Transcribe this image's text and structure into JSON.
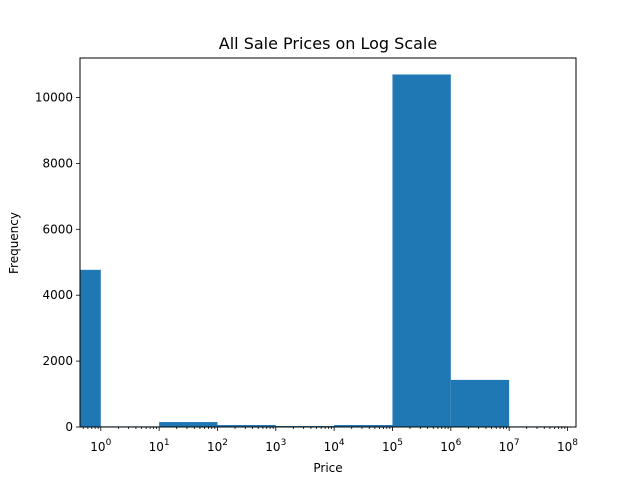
{
  "chart_data": {
    "type": "bar",
    "title": "All Sale Prices on Log Scale",
    "xlabel": "Price",
    "ylabel": "Frequency",
    "x_scale": "log",
    "xlim": [
      0.44,
      140000000
    ],
    "ylim": [
      0,
      11200
    ],
    "bar_color": "#1f77b4",
    "grid": false,
    "bins": [
      {
        "x0": 0.44,
        "x1": 1,
        "value": 4770
      },
      {
        "x0": 1,
        "x1": 10,
        "value": 20
      },
      {
        "x0": 10,
        "x1": 100,
        "value": 150
      },
      {
        "x0": 100,
        "x1": 1000,
        "value": 60
      },
      {
        "x0": 1000,
        "x1": 10000,
        "value": 30
      },
      {
        "x0": 10000,
        "x1": 100000,
        "value": 60
      },
      {
        "x0": 100000,
        "x1": 1000000,
        "value": 10700
      },
      {
        "x0": 1000000,
        "x1": 10000000,
        "value": 1430
      },
      {
        "x0": 10000000,
        "x1": 100000000,
        "value": 20
      }
    ],
    "x_ticks": [
      {
        "value": 1,
        "base": "10",
        "exp": "0"
      },
      {
        "value": 10,
        "base": "10",
        "exp": "1"
      },
      {
        "value": 100,
        "base": "10",
        "exp": "2"
      },
      {
        "value": 1000,
        "base": "10",
        "exp": "3"
      },
      {
        "value": 10000,
        "base": "10",
        "exp": "4"
      },
      {
        "value": 100000,
        "base": "10",
        "exp": "5"
      },
      {
        "value": 1000000,
        "base": "10",
        "exp": "6"
      },
      {
        "value": 10000000,
        "base": "10",
        "exp": "7"
      },
      {
        "value": 100000000,
        "base": "10",
        "exp": "8"
      }
    ],
    "y_ticks": [
      {
        "value": 0,
        "label": "0"
      },
      {
        "value": 2000,
        "label": "2000"
      },
      {
        "value": 4000,
        "label": "4000"
      },
      {
        "value": 6000,
        "label": "6000"
      },
      {
        "value": 8000,
        "label": "8000"
      },
      {
        "value": 10000,
        "label": "10000"
      }
    ]
  }
}
